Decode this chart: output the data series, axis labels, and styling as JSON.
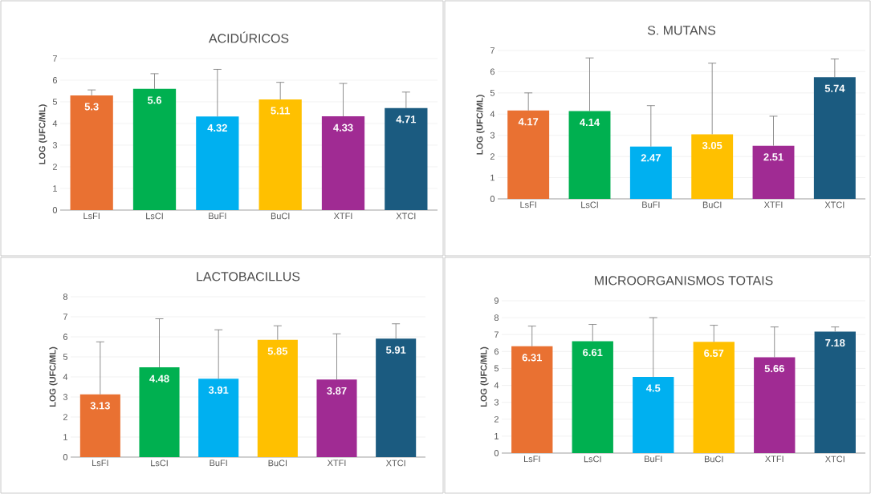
{
  "chart_data": [
    {
      "type": "bar",
      "title": "ACIDÚRICOS",
      "ylabel": "LOG (UFC/ML)",
      "categories": [
        "LsFI",
        "LsCI",
        "BuFI",
        "BuCI",
        "XTFI",
        "XTCI"
      ],
      "values": [
        5.3,
        5.6,
        4.32,
        5.11,
        4.33,
        4.71
      ],
      "colors": [
        "#e97132",
        "#00b050",
        "#00b0f0",
        "#ffc000",
        "#a02b93",
        "#1b5b80"
      ],
      "errors": [
        [
          5.3,
          5.55
        ],
        [
          5.6,
          6.3
        ],
        [
          4.32,
          6.5
        ],
        [
          5.11,
          5.9
        ],
        [
          4.33,
          5.85
        ],
        [
          4.71,
          5.45
        ]
      ],
      "ylim": [
        0,
        7
      ],
      "yticks": [
        0,
        1,
        2,
        3,
        4,
        5,
        6,
        7
      ],
      "grid": "y",
      "data_labels": true
    },
    {
      "type": "bar",
      "title": "S. MUTANS",
      "ylabel": "LOG (UFC/ML)",
      "categories": [
        "LsFI",
        "LsCI",
        "BuFI",
        "BuCI",
        "XTFI",
        "XTCI"
      ],
      "values": [
        4.17,
        4.14,
        2.47,
        3.05,
        2.51,
        5.74
      ],
      "colors": [
        "#e97132",
        "#00b050",
        "#00b0f0",
        "#ffc000",
        "#a02b93",
        "#1b5b80"
      ],
      "errors": [
        [
          4.17,
          5.0
        ],
        [
          4.14,
          6.65
        ],
        [
          2.47,
          4.4
        ],
        [
          3.05,
          6.4
        ],
        [
          2.51,
          3.9
        ],
        [
          5.74,
          6.6
        ]
      ],
      "ylim": [
        0,
        7
      ],
      "yticks": [
        0,
        1,
        2,
        3,
        4,
        5,
        6,
        7
      ],
      "grid": "y",
      "data_labels": true
    },
    {
      "type": "bar",
      "title": "LACTOBACILLUS",
      "ylabel": "LOG (UFC/ML)",
      "categories": [
        "LsFI",
        "LsCI",
        "BuFI",
        "BuCI",
        "XTFI",
        "XTCI"
      ],
      "values": [
        3.13,
        4.48,
        3.91,
        5.85,
        3.87,
        5.91
      ],
      "colors": [
        "#e97132",
        "#00b050",
        "#00b0f0",
        "#ffc000",
        "#a02b93",
        "#1b5b80"
      ],
      "errors": [
        [
          3.13,
          5.75
        ],
        [
          4.48,
          6.9
        ],
        [
          3.91,
          6.35
        ],
        [
          5.85,
          6.55
        ],
        [
          3.87,
          6.15
        ],
        [
          5.91,
          6.65
        ]
      ],
      "ylim": [
        0,
        8
      ],
      "yticks": [
        0,
        1,
        2,
        3,
        4,
        5,
        6,
        7,
        8
      ],
      "grid": "y",
      "data_labels": true
    },
    {
      "type": "bar",
      "title": "MICROORGANISMOS TOTAIS",
      "ylabel": "LOG (UFC/ML)",
      "categories": [
        "LsFI",
        "LsCI",
        "BuFI",
        "BuCI",
        "XTFI",
        "XTCI"
      ],
      "values": [
        6.31,
        6.61,
        4.5,
        6.57,
        5.66,
        7.18
      ],
      "colors": [
        "#e97132",
        "#00b050",
        "#00b0f0",
        "#ffc000",
        "#a02b93",
        "#1b5b80"
      ],
      "errors": [
        [
          6.31,
          7.5
        ],
        [
          6.61,
          7.6
        ],
        [
          4.5,
          8.0
        ],
        [
          6.57,
          7.55
        ],
        [
          5.66,
          7.45
        ],
        [
          7.18,
          7.45
        ]
      ],
      "ylim": [
        0,
        9
      ],
      "yticks": [
        0,
        1,
        2,
        3,
        4,
        5,
        6,
        7,
        8,
        9
      ],
      "grid": "y",
      "data_labels": true
    }
  ]
}
